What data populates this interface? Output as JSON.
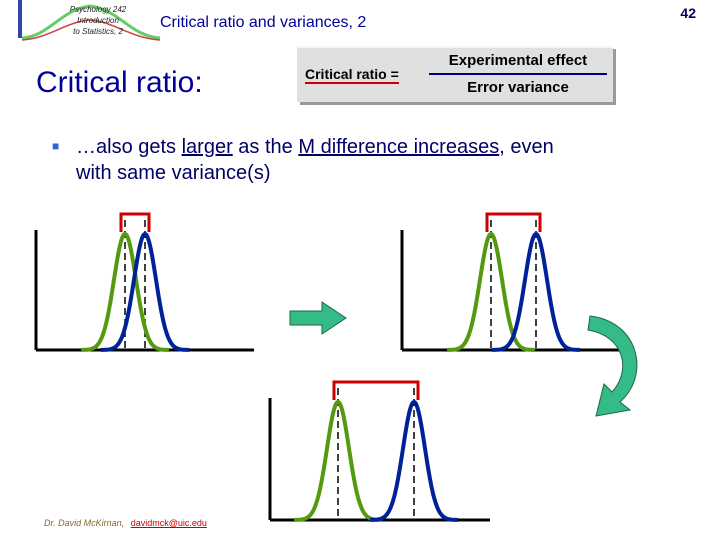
{
  "header": {
    "logo_lines": [
      "Psychology 242",
      "Introduction",
      "to Statistics, 2"
    ],
    "title": "Critical ratio and variances, 2",
    "page_number": "42"
  },
  "slide": {
    "heading": "Critical ratio:",
    "formula": {
      "lhs": "Critical ratio =",
      "numerator": "Experimental effect",
      "denominator": "Error variance"
    },
    "bullet": {
      "p1": "…also gets ",
      "u1": "larger",
      "p2": " as the ",
      "u2": "M difference increases",
      "p3": ", even with same variance(s)"
    }
  },
  "colors": {
    "green_curve": "#559911",
    "blue_curve": "#002299",
    "bracket": "#cc0000",
    "arrow_fill": "#33bb88",
    "title_blue": "#000099"
  },
  "icons": [
    "right-arrow-icon",
    "curved-arrow-icon"
  ],
  "footer": {
    "author": "Dr. David McKirnan,",
    "email": "davidmck@uic.edu"
  }
}
